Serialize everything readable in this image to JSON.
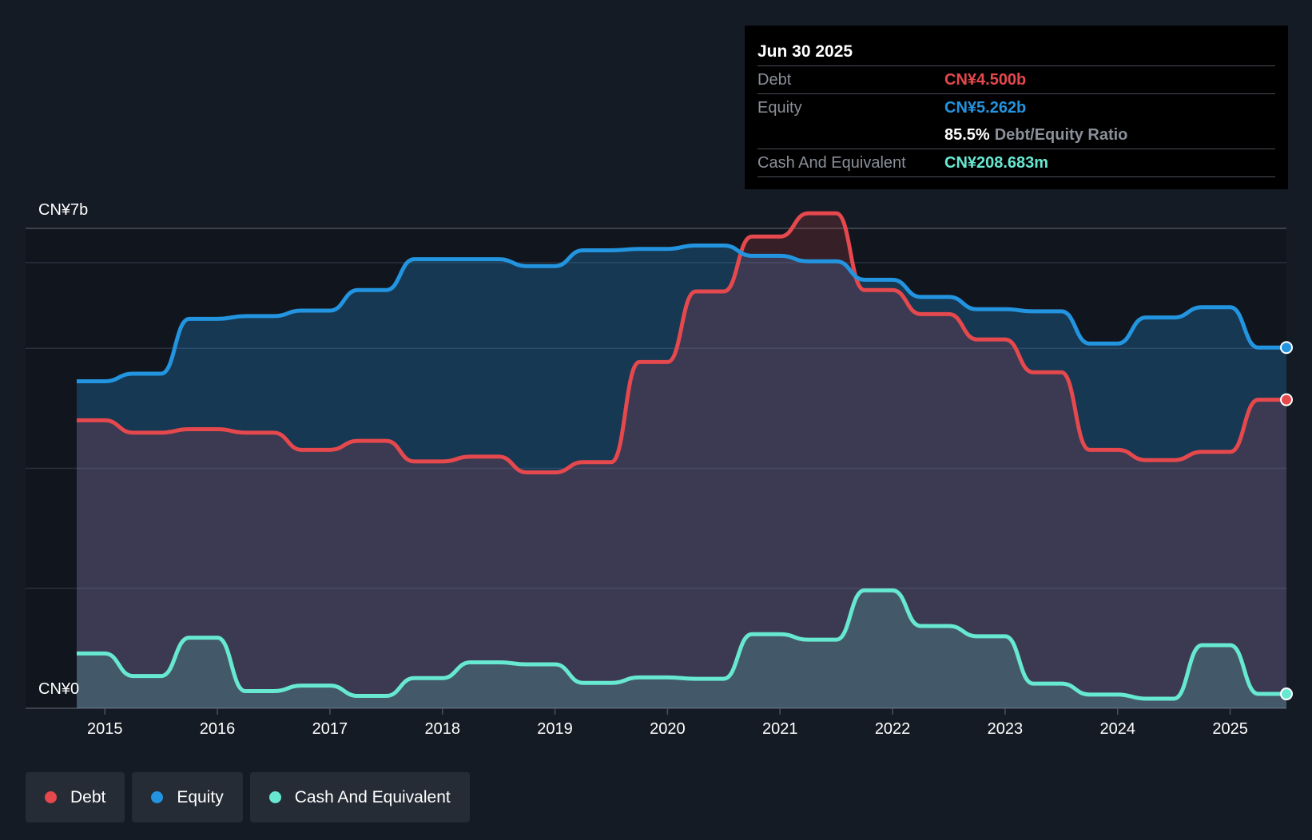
{
  "chart_data": {
    "type": "area",
    "y_max_label": "CN¥7b",
    "y_min_label": "CN¥0",
    "ylim": [
      0,
      7
    ],
    "xlim": [
      2014.75,
      2025.5
    ],
    "x_ticks": [
      "2015",
      "2016",
      "2017",
      "2018",
      "2019",
      "2020",
      "2021",
      "2022",
      "2023",
      "2024",
      "2025"
    ],
    "series": [
      {
        "name": "Debt",
        "color": "#e5484d",
        "points": [
          [
            2014.75,
            4.2
          ],
          [
            2015.0,
            4.2
          ],
          [
            2015.25,
            4.02
          ],
          [
            2015.5,
            4.02
          ],
          [
            2015.75,
            4.07
          ],
          [
            2016.0,
            4.07
          ],
          [
            2016.25,
            4.02
          ],
          [
            2016.5,
            4.02
          ],
          [
            2016.75,
            3.77
          ],
          [
            2017.0,
            3.77
          ],
          [
            2017.25,
            3.9
          ],
          [
            2017.5,
            3.9
          ],
          [
            2017.75,
            3.6
          ],
          [
            2018.0,
            3.6
          ],
          [
            2018.25,
            3.67
          ],
          [
            2018.5,
            3.67
          ],
          [
            2018.75,
            3.44
          ],
          [
            2019.0,
            3.44
          ],
          [
            2019.25,
            3.59
          ],
          [
            2019.5,
            3.59
          ],
          [
            2019.75,
            5.05
          ],
          [
            2020.0,
            5.05
          ],
          [
            2020.25,
            6.08
          ],
          [
            2020.5,
            6.08
          ],
          [
            2020.75,
            6.88
          ],
          [
            2021.0,
            6.88
          ],
          [
            2021.25,
            7.22
          ],
          [
            2021.5,
            7.22
          ],
          [
            2021.75,
            6.1
          ],
          [
            2022.0,
            6.1
          ],
          [
            2022.25,
            5.75
          ],
          [
            2022.5,
            5.75
          ],
          [
            2022.75,
            5.38
          ],
          [
            2023.0,
            5.38
          ],
          [
            2023.25,
            4.9
          ],
          [
            2023.5,
            4.9
          ],
          [
            2023.75,
            3.77
          ],
          [
            2024.0,
            3.77
          ],
          [
            2024.25,
            3.62
          ],
          [
            2024.5,
            3.62
          ],
          [
            2024.75,
            3.74
          ],
          [
            2025.0,
            3.74
          ],
          [
            2025.25,
            4.5
          ],
          [
            2025.5,
            4.5
          ]
        ]
      },
      {
        "name": "Equity",
        "color": "#2394df",
        "points": [
          [
            2014.75,
            4.77
          ],
          [
            2015.0,
            4.77
          ],
          [
            2015.25,
            4.88
          ],
          [
            2015.5,
            4.88
          ],
          [
            2015.75,
            5.68
          ],
          [
            2016.0,
            5.68
          ],
          [
            2016.25,
            5.72
          ],
          [
            2016.5,
            5.72
          ],
          [
            2016.75,
            5.8
          ],
          [
            2017.0,
            5.8
          ],
          [
            2017.25,
            6.1
          ],
          [
            2017.5,
            6.1
          ],
          [
            2017.75,
            6.55
          ],
          [
            2018.0,
            6.55
          ],
          [
            2018.25,
            6.55
          ],
          [
            2018.5,
            6.55
          ],
          [
            2018.75,
            6.45
          ],
          [
            2019.0,
            6.45
          ],
          [
            2019.25,
            6.68
          ],
          [
            2019.5,
            6.68
          ],
          [
            2019.75,
            6.7
          ],
          [
            2020.0,
            6.7
          ],
          [
            2020.25,
            6.75
          ],
          [
            2020.5,
            6.75
          ],
          [
            2020.75,
            6.6
          ],
          [
            2021.0,
            6.6
          ],
          [
            2021.25,
            6.52
          ],
          [
            2021.5,
            6.52
          ],
          [
            2021.75,
            6.25
          ],
          [
            2022.0,
            6.25
          ],
          [
            2022.25,
            6.0
          ],
          [
            2022.5,
            6.0
          ],
          [
            2022.75,
            5.82
          ],
          [
            2023.0,
            5.82
          ],
          [
            2023.25,
            5.79
          ],
          [
            2023.5,
            5.79
          ],
          [
            2023.75,
            5.32
          ],
          [
            2024.0,
            5.32
          ],
          [
            2024.25,
            5.7
          ],
          [
            2024.5,
            5.7
          ],
          [
            2024.75,
            5.85
          ],
          [
            2025.0,
            5.85
          ],
          [
            2025.25,
            5.262
          ],
          [
            2025.5,
            5.262
          ]
        ]
      },
      {
        "name": "Cash And Equivalent",
        "color": "#67e8d1",
        "points": [
          [
            2014.75,
            0.8
          ],
          [
            2015.0,
            0.8
          ],
          [
            2015.25,
            0.47
          ],
          [
            2015.5,
            0.47
          ],
          [
            2015.75,
            1.03
          ],
          [
            2016.0,
            1.03
          ],
          [
            2016.25,
            0.25
          ],
          [
            2016.5,
            0.25
          ],
          [
            2016.75,
            0.33
          ],
          [
            2017.0,
            0.33
          ],
          [
            2017.25,
            0.18
          ],
          [
            2017.5,
            0.18
          ],
          [
            2017.75,
            0.44
          ],
          [
            2018.0,
            0.44
          ],
          [
            2018.25,
            0.67
          ],
          [
            2018.5,
            0.67
          ],
          [
            2018.75,
            0.64
          ],
          [
            2019.0,
            0.64
          ],
          [
            2019.25,
            0.37
          ],
          [
            2019.5,
            0.37
          ],
          [
            2019.75,
            0.45
          ],
          [
            2020.0,
            0.45
          ],
          [
            2020.25,
            0.43
          ],
          [
            2020.5,
            0.43
          ],
          [
            2020.75,
            1.08
          ],
          [
            2021.0,
            1.08
          ],
          [
            2021.25,
            1.0
          ],
          [
            2021.5,
            1.0
          ],
          [
            2021.75,
            1.72
          ],
          [
            2022.0,
            1.72
          ],
          [
            2022.25,
            1.2
          ],
          [
            2022.5,
            1.2
          ],
          [
            2022.75,
            1.05
          ],
          [
            2023.0,
            1.05
          ],
          [
            2023.25,
            0.36
          ],
          [
            2023.5,
            0.36
          ],
          [
            2023.75,
            0.2
          ],
          [
            2024.0,
            0.2
          ],
          [
            2024.25,
            0.14
          ],
          [
            2024.5,
            0.14
          ],
          [
            2024.75,
            0.92
          ],
          [
            2025.0,
            0.92
          ],
          [
            2025.25,
            0.209
          ],
          [
            2025.5,
            0.209
          ]
        ]
      }
    ]
  },
  "tooltip": {
    "date": "Jun 30 2025",
    "debt_label": "Debt",
    "debt_value": "CN¥4.500b",
    "equity_label": "Equity",
    "equity_value": "CN¥5.262b",
    "ratio_value": "85.5%",
    "ratio_label": "Debt/Equity Ratio",
    "cash_label": "Cash And Equivalent",
    "cash_value": "CN¥208.683m"
  },
  "legend": {
    "items": [
      {
        "label": "Debt",
        "color": "#e5484d"
      },
      {
        "label": "Equity",
        "color": "#2394df"
      },
      {
        "label": "Cash And Equivalent",
        "color": "#67e8d1"
      }
    ]
  }
}
